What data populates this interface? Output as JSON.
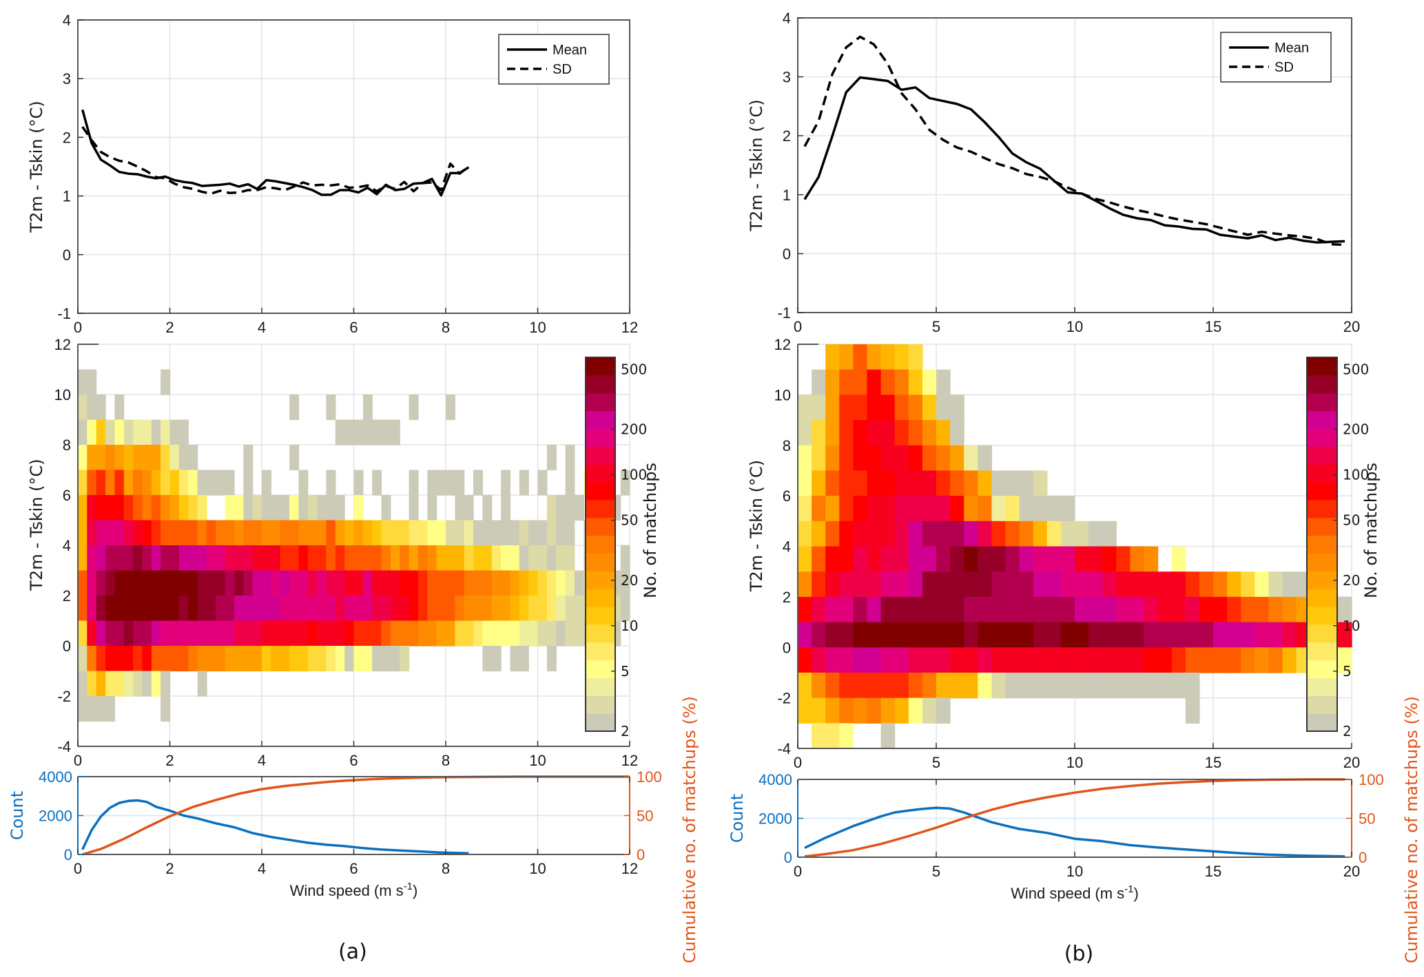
{
  "figure": {
    "panels": [
      {
        "tag": "(a)"
      },
      {
        "tag": "(b)"
      }
    ]
  },
  "colorbar": {
    "label": "No. of matchups",
    "scale": "log",
    "range": [
      2,
      600
    ],
    "ticks": [
      "2",
      "5",
      "10",
      "20",
      "50",
      "100",
      "200",
      "500"
    ],
    "tick_values": [
      2,
      5,
      10,
      20,
      50,
      100,
      200,
      500
    ],
    "levels": [
      "#cccbb8",
      "#dcdba8",
      "#efee9e",
      "#ffff88",
      "#ffeb6a",
      "#ffd83a",
      "#ffc80c",
      "#ffb400",
      "#ffa000",
      "#ff8c00",
      "#ff7a00",
      "#ff5a00",
      "#ff2a00",
      "#ff0000",
      "#f80020",
      "#f00048",
      "#e4007a",
      "#d20090",
      "#b2004e",
      "#960028",
      "#800000"
    ]
  },
  "chart_data": [
    {
      "id": "a-top",
      "type": "line",
      "panel": "(a)",
      "title": "",
      "xlabel": "",
      "ylabel": "T2m - Tskin (°C)",
      "xlim": [
        0,
        12
      ],
      "ylim": [
        -1,
        4
      ],
      "xticks": [
        "0",
        "2",
        "4",
        "6",
        "8",
        "10",
        "12"
      ],
      "xtick_values": [
        0,
        2,
        4,
        6,
        8,
        10,
        12
      ],
      "yticks": [
        "-1",
        "0",
        "1",
        "2",
        "3",
        "4"
      ],
      "ytick_values": [
        -1,
        0,
        1,
        2,
        3,
        4
      ],
      "grid": true,
      "legend": {
        "position": "top-right",
        "entries": [
          "Mean",
          "SD"
        ]
      },
      "series": [
        {
          "name": "Mean",
          "style": "solid",
          "x": [
            0.1,
            0.3,
            0.5,
            0.7,
            0.9,
            1.1,
            1.3,
            1.5,
            1.7,
            1.9,
            2.1,
            2.3,
            2.5,
            2.7,
            2.9,
            3.1,
            3.3,
            3.5,
            3.7,
            3.9,
            4.1,
            4.3,
            4.5,
            4.7,
            4.9,
            5.1,
            5.3,
            5.5,
            5.7,
            5.9,
            6.1,
            6.3,
            6.5,
            6.7,
            6.9,
            7.1,
            7.3,
            7.5,
            7.7,
            7.9,
            8.1,
            8.3,
            8.5
          ],
          "y": [
            2.47,
            1.9,
            1.62,
            1.52,
            1.41,
            1.38,
            1.37,
            1.33,
            1.3,
            1.33,
            1.27,
            1.24,
            1.22,
            1.17,
            1.18,
            1.19,
            1.21,
            1.16,
            1.2,
            1.12,
            1.27,
            1.25,
            1.22,
            1.19,
            1.15,
            1.1,
            1.02,
            1.02,
            1.1,
            1.1,
            1.06,
            1.14,
            1.03,
            1.19,
            1.1,
            1.12,
            1.21,
            1.22,
            1.29,
            1.01,
            1.39,
            1.39,
            1.49
          ]
        },
        {
          "name": "SD",
          "style": "dashed",
          "x": [
            0.1,
            0.3,
            0.5,
            0.7,
            0.9,
            1.1,
            1.3,
            1.5,
            1.7,
            1.9,
            2.1,
            2.3,
            2.5,
            2.7,
            2.9,
            3.1,
            3.3,
            3.5,
            3.7,
            3.9,
            4.1,
            4.3,
            4.5,
            4.7,
            4.9,
            5.1,
            5.3,
            5.5,
            5.7,
            5.9,
            6.1,
            6.3,
            6.5,
            6.7,
            6.9,
            7.1,
            7.3,
            7.5,
            7.7,
            7.9,
            8.1,
            8.3,
            8.5
          ],
          "y": [
            2.18,
            1.95,
            1.75,
            1.66,
            1.6,
            1.57,
            1.5,
            1.42,
            1.32,
            1.3,
            1.21,
            1.15,
            1.12,
            1.07,
            1.04,
            1.09,
            1.05,
            1.06,
            1.1,
            1.1,
            1.15,
            1.13,
            1.1,
            1.16,
            1.23,
            1.18,
            1.19,
            1.18,
            1.2,
            1.14,
            1.15,
            1.18,
            1.08,
            1.17,
            1.12,
            1.24,
            1.08,
            1.22,
            1.23,
            1.1,
            1.55,
            1.38,
            1.5
          ]
        }
      ]
    },
    {
      "id": "a-heat",
      "type": "heatmap",
      "panel": "(a)",
      "ylabel": "T2m - Tskin (°C)",
      "xlim": [
        0,
        12
      ],
      "ylim": [
        -4,
        12
      ],
      "xbin": 0.2,
      "ybin": 1,
      "xticks": [
        "0",
        "2",
        "4",
        "6",
        "8",
        "10",
        "12"
      ],
      "xtick_values": [
        0,
        2,
        4,
        6,
        8,
        10,
        12
      ],
      "yticks": [
        "-4",
        "-2",
        "0",
        "2",
        "4",
        "6",
        "8",
        "10",
        "12"
      ],
      "ytick_values": [
        -4,
        -2,
        0,
        2,
        4,
        6,
        8,
        10,
        12
      ],
      "grid": true,
      "value_encoding": "each character is a colorbar level index (0-9 then a-k for 10-20); '.' is an empty bin; rows listed from y=11..12 down to y=-4..-3",
      "rows": [
        "............................................................",
        "00.......0..................................................",
        "100.0..................0...0...0....0...0...................",
        "036131220200................0000000.........................",
        "3889878885200.....0....0...........................0.0......",
        "5bcac8a9756430000.0.0...0..0..0.0...0.0000.0..0.0.0..0.3.0.0",
        "7edddcbab98654..3301000301000.3..0..0.0..00.0.0....1000..00..",
        "7fgggfedcbbbbabaa9aa99aa999b87876555443311200000100100.0....",
        "7ghiiijihiihhhggfffeeeccdccbcbbbba8a8a9777566433011011.00..0",
        "bgijkkkkkkkkkjjjijihhghggfgffeegeeeddcbbbbaaa998765432011000",
        "bgjkkkkkkkkjkjjiihhhhhggggggfgggffeedcbbba999887655421110010",
        "5ehiijiihggggggggfffeeeeedeeedcccbaaa99885543333221101100.0",
        "1acdddcdbbbba99988886776655430330001........00.00..0........",
        "0574421030...0..............................................",
        "0000.....0..................................................",
        "............................................................"
      ]
    },
    {
      "id": "a-count",
      "type": "line",
      "panel": "(a)",
      "xlabel": "Wind speed (m s-1)",
      "xlim": [
        0,
        12
      ],
      "xticks": [
        "0",
        "2",
        "4",
        "6",
        "8",
        "10",
        "12"
      ],
      "xtick_values": [
        0,
        2,
        4,
        6,
        8,
        10,
        12
      ],
      "ylabel_left": "Count",
      "ylim_left": [
        0,
        4000
      ],
      "yticks_left": [
        "0",
        "2000",
        "4000"
      ],
      "ytick_values_left": [
        0,
        2000,
        4000
      ],
      "ylabel_right": "Cumulative no. of matchups (%)",
      "ylim_right": [
        0,
        100
      ],
      "yticks_right": [
        "0",
        "50",
        "100"
      ],
      "ytick_values_right": [
        0,
        50,
        100
      ],
      "grid": true,
      "series": [
        {
          "name": "Count",
          "axis": "left",
          "color": "#0a6fbf",
          "x": [
            0.1,
            0.3,
            0.5,
            0.7,
            0.9,
            1.1,
            1.3,
            1.5,
            1.7,
            2.0,
            2.3,
            2.6,
            3.0,
            3.4,
            3.8,
            4.2,
            4.6,
            5.0,
            5.4,
            5.8,
            6.2,
            6.6,
            7.0,
            7.4,
            7.8,
            8.2,
            8.5
          ],
          "y": [
            250,
            1250,
            1950,
            2400,
            2650,
            2750,
            2780,
            2700,
            2450,
            2250,
            2000,
            1850,
            1600,
            1400,
            1100,
            900,
            750,
            600,
            500,
            430,
            330,
            250,
            200,
            160,
            110,
            80,
            60
          ]
        },
        {
          "name": "Cumulative",
          "axis": "right",
          "color": "#e0541a",
          "x": [
            0.1,
            0.5,
            1.0,
            1.5,
            2.0,
            2.5,
            3.0,
            3.5,
            4.0,
            4.5,
            5.0,
            5.5,
            6.0,
            6.5,
            7.0,
            7.5,
            8.0,
            9.0,
            10.0,
            11.0,
            12.0
          ],
          "y": [
            0,
            7,
            20,
            35,
            49,
            61,
            70,
            78,
            84,
            88,
            91,
            93.5,
            95.5,
            97,
            98,
            98.8,
            99.4,
            99.8,
            100,
            100,
            100
          ]
        }
      ]
    },
    {
      "id": "b-top",
      "type": "line",
      "panel": "(b)",
      "ylabel": "T2m - Tskin  (°C)",
      "xlim": [
        0,
        20
      ],
      "ylim": [
        -1,
        4
      ],
      "xticks": [
        "0",
        "5",
        "10",
        "15",
        "20"
      ],
      "xtick_values": [
        0,
        5,
        10,
        15,
        20
      ],
      "yticks": [
        "-1",
        "0",
        "1",
        "2",
        "3",
        "4"
      ],
      "ytick_values": [
        -1,
        0,
        1,
        2,
        3,
        4
      ],
      "grid": true,
      "legend": {
        "position": "top-right",
        "entries": [
          "Mean",
          "SD"
        ]
      },
      "series": [
        {
          "name": "Mean",
          "style": "solid",
          "x": [
            0.25,
            0.75,
            1.25,
            1.75,
            2.25,
            2.75,
            3.25,
            3.75,
            4.25,
            4.75,
            5.25,
            5.75,
            6.25,
            6.75,
            7.25,
            7.75,
            8.25,
            8.75,
            9.25,
            9.75,
            10.25,
            10.75,
            11.25,
            11.75,
            12.25,
            12.75,
            13.25,
            13.75,
            14.25,
            14.75,
            15.25,
            15.75,
            16.25,
            16.75,
            17.25,
            17.75,
            18.25,
            18.75,
            19.25,
            19.75
          ],
          "y": [
            0.92,
            1.3,
            2.0,
            2.74,
            2.99,
            2.96,
            2.93,
            2.78,
            2.82,
            2.64,
            2.59,
            2.54,
            2.45,
            2.23,
            1.98,
            1.7,
            1.55,
            1.44,
            1.24,
            1.04,
            1.02,
            0.9,
            0.77,
            0.66,
            0.6,
            0.57,
            0.48,
            0.46,
            0.42,
            0.41,
            0.32,
            0.29,
            0.26,
            0.31,
            0.23,
            0.27,
            0.22,
            0.19,
            0.2,
            0.21
          ]
        },
        {
          "name": "SD",
          "style": "dashed",
          "x": [
            0.25,
            0.75,
            1.25,
            1.75,
            2.25,
            2.75,
            3.25,
            3.75,
            4.25,
            4.75,
            5.25,
            5.75,
            6.25,
            6.75,
            7.25,
            7.75,
            8.25,
            8.75,
            9.25,
            9.75,
            10.25,
            10.75,
            11.25,
            11.75,
            12.25,
            12.75,
            13.25,
            13.75,
            14.25,
            14.75,
            15.25,
            15.75,
            16.25,
            16.75,
            17.25,
            17.75,
            18.25,
            18.75,
            19.25,
            19.75
          ],
          "y": [
            1.82,
            2.25,
            3.05,
            3.5,
            3.68,
            3.55,
            3.22,
            2.72,
            2.45,
            2.1,
            1.93,
            1.8,
            1.73,
            1.62,
            1.52,
            1.45,
            1.35,
            1.3,
            1.23,
            1.12,
            1.02,
            0.93,
            0.87,
            0.8,
            0.74,
            0.69,
            0.63,
            0.58,
            0.54,
            0.5,
            0.44,
            0.38,
            0.32,
            0.37,
            0.34,
            0.31,
            0.29,
            0.25,
            0.16,
            0.15
          ]
        }
      ]
    },
    {
      "id": "b-heat",
      "type": "heatmap",
      "panel": "(b)",
      "ylabel": "T2m - Tskin  (°C)",
      "xlim": [
        0,
        20
      ],
      "ylim": [
        -4,
        12
      ],
      "xbin": 0.5,
      "ybin": 1,
      "xticks": [
        "0",
        "5",
        "10",
        "15",
        "20"
      ],
      "xtick_values": [
        0,
        5,
        10,
        15,
        20
      ],
      "yticks": [
        "-4",
        "-2",
        "0",
        "2",
        "4",
        "6",
        "8",
        "10",
        "12"
      ],
      "ytick_values": [
        -4,
        -2,
        0,
        2,
        4,
        6,
        8,
        10,
        12
      ],
      "grid": true,
      "value_encoding": "each character is a colorbar level index (0-9 then a-k for 10-20); '.' is an empty bin; rows listed from y=11..12 down to y=-4..-3",
      "rows": [
        "..78b8765...............................",
        ".08bbdba630.............................",
        "118ccddba600............................",
        "158cdeecb970............................",
        "359cddeedba820..........................",
        "37bccddeeecba70001......................",
        "4a8cdeeffffd9a240000....................",
        "57bdeeefhiiihfcba741100.................",
        "6bddfeffhhijkjjihgggeedca9.3............",
        "9cefffgghjjjjjiiihhgggfeeeeecba753100...",
        "dfggihjjjjjjiiiiiiiihhhggfeefddcbba98200",
        "hijjkkkkkkkkjkkkkjjkkjjjjiiiiihhhggfeeee",
        "dfgghhggfffeefeeeeeeeeeeeddcbbbba9a75543",
        "69bcccccba7773100000000000000...........",
        "668a9a87310.................0...........",
        ".443..0.................................",
        "........................................"
      ]
    },
    {
      "id": "b-count",
      "type": "line",
      "panel": "(b)",
      "xlabel": "Wind speed (m s-1)",
      "xlim": [
        0,
        20
      ],
      "xticks": [
        "0",
        "5",
        "10",
        "15",
        "20"
      ],
      "xtick_values": [
        0,
        5,
        10,
        15,
        20
      ],
      "ylabel_left": "Count",
      "ylim_left": [
        0,
        4000
      ],
      "yticks_left": [
        "0",
        "2000",
        "4000"
      ],
      "ytick_values_left": [
        0,
        2000,
        4000
      ],
      "ylabel_right": "Cumulative no. of matchups (%)",
      "ylim_right": [
        0,
        100
      ],
      "yticks_right": [
        "0",
        "50",
        "100"
      ],
      "ytick_values_right": [
        0,
        50,
        100
      ],
      "grid": true,
      "series": [
        {
          "name": "Count",
          "axis": "left",
          "color": "#0a6fbf",
          "x": [
            0.25,
            1.0,
            2.0,
            3.0,
            3.5,
            4.0,
            4.5,
            5.0,
            5.5,
            6.0,
            6.5,
            7.0,
            7.5,
            8.0,
            9.0,
            10.0,
            11.0,
            12.0,
            13.0,
            14.0,
            15.0,
            16.0,
            17.0,
            18.0,
            19.0,
            19.75
          ],
          "y": [
            480,
            1000,
            1600,
            2100,
            2300,
            2400,
            2480,
            2540,
            2500,
            2300,
            2050,
            1800,
            1620,
            1450,
            1250,
            950,
            820,
            620,
            500,
            400,
            300,
            200,
            130,
            90,
            60,
            40
          ]
        },
        {
          "name": "Cumulative",
          "axis": "right",
          "color": "#e0541a",
          "x": [
            0.25,
            1.0,
            2.0,
            3.0,
            4.0,
            5.0,
            6.0,
            7.0,
            8.0,
            9.0,
            10.0,
            11.0,
            12.0,
            13.0,
            14.0,
            15.0,
            16.0,
            17.0,
            18.0,
            19.0,
            19.75
          ],
          "y": [
            1,
            4,
            9,
            17,
            27,
            38,
            50,
            61,
            70,
            77,
            83,
            88,
            91.5,
            94.5,
            96.5,
            98,
            99,
            99.6,
            99.9,
            100,
            100
          ]
        }
      ]
    }
  ]
}
